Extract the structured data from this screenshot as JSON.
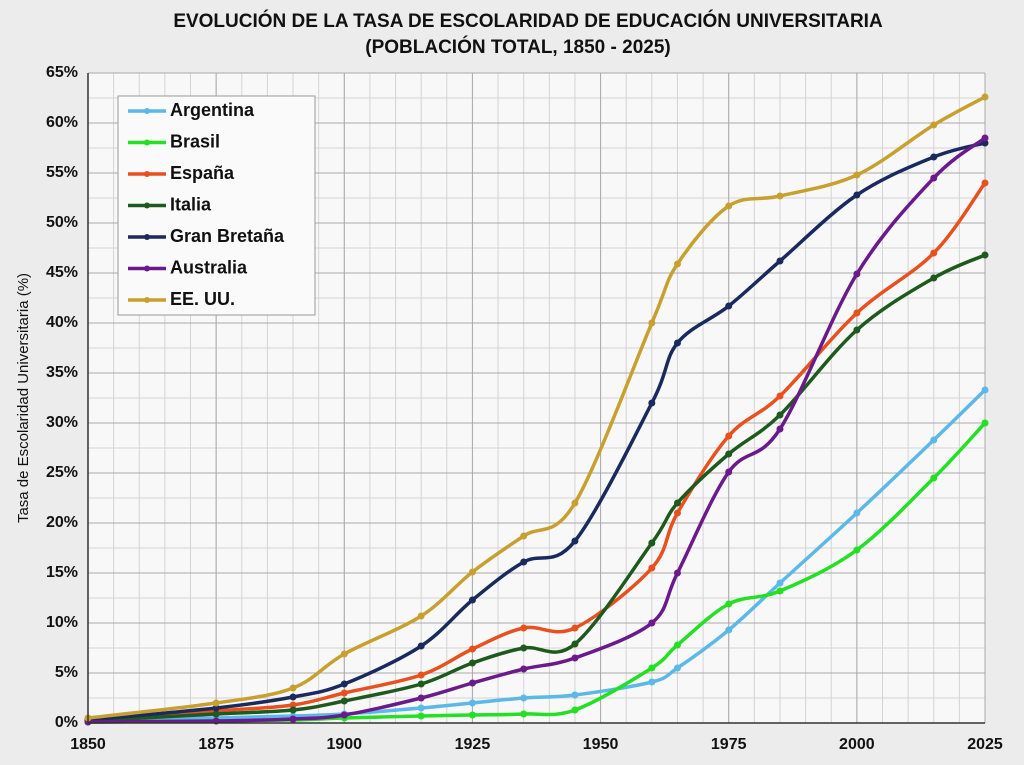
{
  "chart_data": {
    "type": "line",
    "title": "EVOLUCIÓN DE LA TASA DE ESCOLARIDAD DE EDUCACIÓN UNIVERSITARIA",
    "subtitle": "(POBLACIÓN TOTAL, 1850 - 2025)",
    "y_label": "Tasa de Escolaridad Universitaria (%)",
    "x": [
      1850,
      1875,
      1890,
      1900,
      1915,
      1925,
      1935,
      1945,
      1960,
      1965,
      1975,
      1985,
      2000,
      2015,
      2025
    ],
    "series": [
      {
        "name": "Argentina",
        "color": "#5bb8e8",
        "values": [
          0.3,
          0.5,
          0.7,
          0.9,
          1.5,
          2.0,
          2.5,
          2.8,
          4.1,
          5.5,
          9.3,
          14.0,
          21.0,
          28.3,
          33.3
        ]
      },
      {
        "name": "Brasil",
        "color": "#22e022",
        "values": [
          0.1,
          0.2,
          0.3,
          0.5,
          0.7,
          0.8,
          0.9,
          1.3,
          5.5,
          7.8,
          11.9,
          13.2,
          17.3,
          24.5,
          30.0
        ]
      },
      {
        "name": "España",
        "color": "#e8501e",
        "values": [
          0.3,
          1.2,
          1.8,
          3.0,
          4.8,
          7.4,
          9.5,
          9.5,
          15.5,
          21.0,
          28.7,
          32.7,
          41.0,
          47.0,
          54.0
        ]
      },
      {
        "name": "Italia",
        "color": "#1e5a1e",
        "values": [
          0.2,
          0.9,
          1.3,
          2.2,
          3.9,
          6.0,
          7.5,
          7.9,
          18.0,
          22.0,
          26.9,
          30.8,
          39.3,
          44.5,
          46.8
        ]
      },
      {
        "name": "Gran Bretaña",
        "color": "#1a2a5e",
        "values": [
          0.3,
          1.5,
          2.6,
          3.9,
          7.7,
          12.3,
          16.1,
          18.2,
          32.0,
          38.0,
          41.7,
          46.2,
          52.8,
          56.6,
          58.0
        ]
      },
      {
        "name": "Australia",
        "color": "#6a1a8a",
        "values": [
          0.1,
          0.2,
          0.4,
          0.8,
          2.5,
          4.0,
          5.4,
          6.5,
          10.0,
          15.0,
          25.1,
          29.4,
          44.9,
          54.5,
          58.5
        ]
      },
      {
        "name": "EE. UU.",
        "color": "#c8a030",
        "values": [
          0.5,
          2.0,
          3.5,
          6.9,
          10.7,
          15.1,
          18.7,
          22.0,
          40.0,
          45.9,
          51.7,
          52.7,
          54.8,
          59.8,
          62.6
        ]
      }
    ],
    "xlim": [
      1850,
      2025
    ],
    "ylim": [
      0,
      65
    ],
    "xticks": [
      1850,
      1875,
      1900,
      1925,
      1950,
      1975,
      2000,
      2025
    ],
    "yticks": [
      {
        "value": 0,
        "label": "0%"
      },
      {
        "value": 5,
        "label": "5%"
      },
      {
        "value": 10,
        "label": "10%"
      },
      {
        "value": 15,
        "label": "15%"
      },
      {
        "value": 20,
        "label": "20%"
      },
      {
        "value": 25,
        "label": "25%"
      },
      {
        "value": 30,
        "label": "30%"
      },
      {
        "value": 35,
        "label": "35%"
      },
      {
        "value": 40,
        "label": "40%"
      },
      {
        "value": 45,
        "label": "45%"
      },
      {
        "value": 50,
        "label": "50%"
      },
      {
        "value": 55,
        "label": "55%"
      },
      {
        "value": 60,
        "label": "60%"
      },
      {
        "value": 65,
        "label": "65%"
      }
    ],
    "grid": true,
    "legend": "upper left"
  }
}
